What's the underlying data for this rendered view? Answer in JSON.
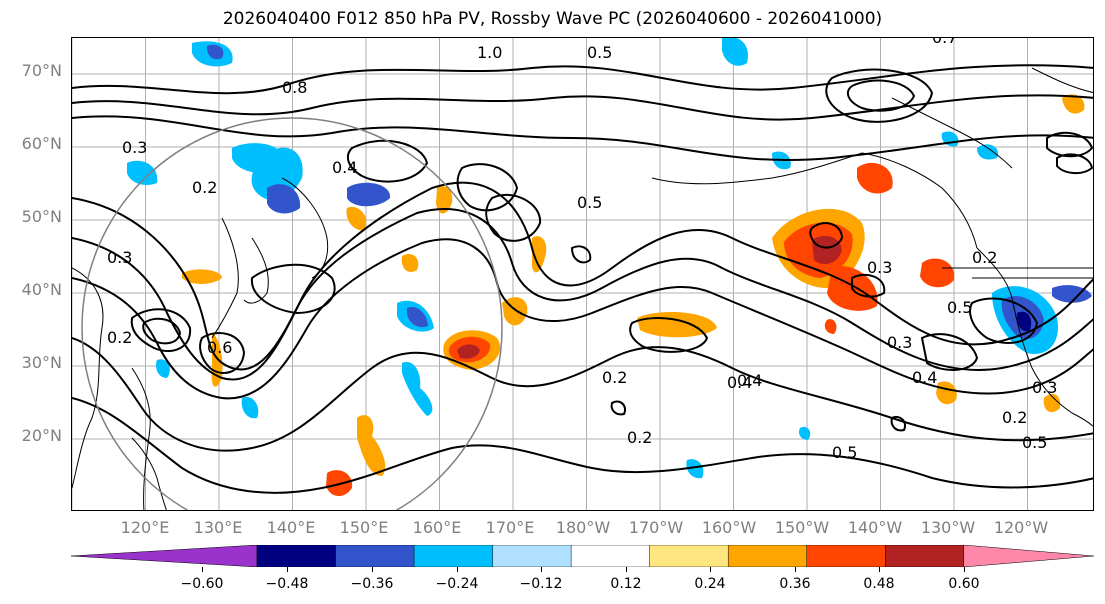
{
  "title": "2026040400 F012 850 hPa PV, Rossby Wave PC (2026040600 - 2026041000)",
  "lat_labels": [
    "70°N",
    "60°N",
    "50°N",
    "40°N",
    "30°N",
    "20°N"
  ],
  "lon_labels": [
    "120°E",
    "130°E",
    "140°E",
    "150°E",
    "160°E",
    "170°E",
    "180°W",
    "170°W",
    "160°W",
    "150°W",
    "140°W",
    "130°W",
    "120°W"
  ],
  "contour_labels": [
    "1.0",
    "0.5",
    "0.8",
    "0.4",
    "0.3",
    "0.2",
    "0.6",
    "0.3",
    "0.2",
    "0.5",
    "0.4",
    "0.3",
    "0.2",
    "0.4",
    "0.5",
    "0.3",
    "0.2",
    "0.4",
    "0.5",
    "0.2",
    "0.3",
    "0.2",
    "0.5",
    "0.7"
  ],
  "colorbar": {
    "ticks": [
      "−0.60",
      "−0.48",
      "−0.36",
      "−0.24",
      "−0.12",
      "0.12",
      "0.24",
      "0.36",
      "0.48",
      "0.60"
    ],
    "colors": [
      "#9933cc",
      "#000080",
      "#3355cc",
      "#00bfff",
      "#b0e0ff",
      "#ffffff",
      "#ffe680",
      "#ffa500",
      "#ff4500",
      "#b22222",
      "#ff88aa"
    ]
  },
  "colors": {
    "contour": "#000000",
    "grid": "#b0b0b0",
    "coast": "#000000",
    "axis_text": "#808080"
  }
}
